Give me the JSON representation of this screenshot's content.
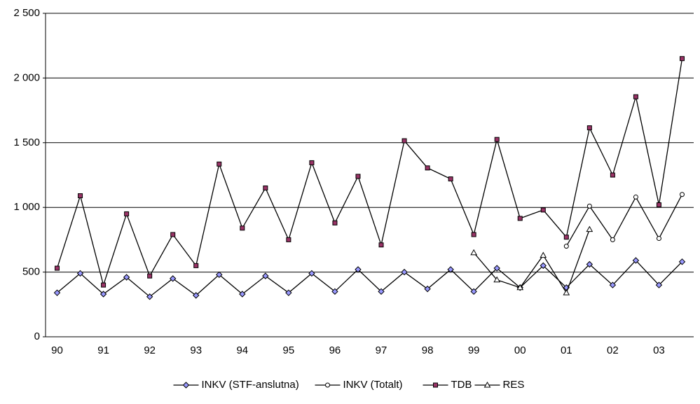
{
  "chart_data": {
    "type": "line",
    "categories": [
      "90",
      null,
      "91",
      null,
      "92",
      null,
      "93",
      null,
      "94",
      null,
      "95",
      null,
      "96",
      null,
      "97",
      null,
      "98",
      null,
      "99",
      null,
      "00",
      null,
      "01",
      null,
      "02",
      null,
      "03",
      null
    ],
    "series": [
      {
        "name": "INKV (STF-anslutna)",
        "color": "#9999ff",
        "marker": "diamond",
        "values": [
          340,
          490,
          330,
          460,
          310,
          450,
          320,
          480,
          330,
          470,
          340,
          490,
          350,
          520,
          350,
          500,
          370,
          520,
          350,
          530,
          380,
          550,
          380,
          560,
          400,
          590,
          400,
          580
        ]
      },
      {
        "name": "INKV (Totalt)",
        "color": "#ffffff",
        "marker": "circle",
        "values": [
          null,
          null,
          null,
          null,
          null,
          null,
          null,
          null,
          null,
          null,
          null,
          null,
          null,
          null,
          null,
          null,
          null,
          null,
          null,
          null,
          null,
          null,
          700,
          1010,
          750,
          1080,
          760,
          1100
        ]
      },
      {
        "name": "TDB",
        "color": "#993366",
        "marker": "square",
        "values": [
          530,
          1090,
          400,
          950,
          470,
          790,
          550,
          1335,
          840,
          1150,
          750,
          1345,
          880,
          1240,
          710,
          1515,
          1305,
          1220,
          790,
          1525,
          915,
          980,
          770,
          1615,
          1250,
          1855,
          1020,
          2150
        ]
      },
      {
        "name": "RES",
        "color": "#ffffff",
        "marker": "triangle",
        "values": [
          null,
          null,
          null,
          null,
          null,
          null,
          null,
          null,
          null,
          null,
          null,
          null,
          null,
          null,
          null,
          null,
          null,
          null,
          650,
          440,
          380,
          630,
          340,
          830,
          null,
          null,
          null,
          null
        ]
      }
    ],
    "ylim": [
      0,
      2500
    ],
    "yticks": [
      0,
      500,
      {
        "value": 1000,
        "label": "1 000"
      },
      {
        "value": 1500,
        "label": "1 500"
      },
      {
        "value": 2000,
        "label": "2 000"
      },
      {
        "value": 2500,
        "label": "2 500"
      }
    ],
    "grid": true,
    "legend": "bottom"
  }
}
